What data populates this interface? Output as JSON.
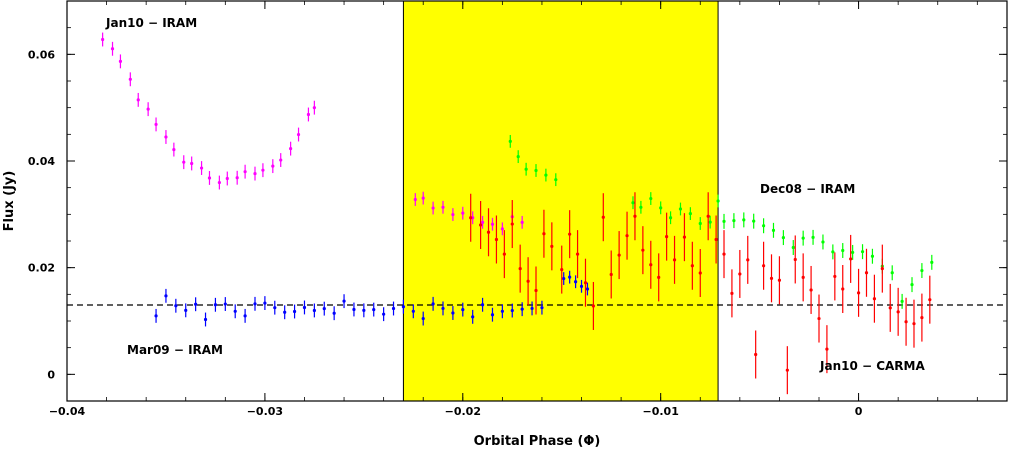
{
  "chart_data": {
    "type": "scatter",
    "xlabel": "Orbital Phase (Φ)",
    "ylabel": "Flux (Jy)",
    "xlim": [
      -0.04,
      0.0075
    ],
    "ylim": [
      -0.005,
      0.07
    ],
    "x_ticks": [
      -0.04,
      -0.03,
      -0.02,
      -0.01,
      0
    ],
    "x_tick_labels": [
      "−0.04",
      "−0.03",
      "−0.02",
      "−0.01",
      "0"
    ],
    "y_ticks": [
      0,
      0.02,
      0.04,
      0.06
    ],
    "y_tick_labels": [
      "0",
      "0.02",
      "0.04",
      "0.06"
    ],
    "grid": false,
    "shaded_region": {
      "x": [
        -0.023,
        -0.0071
      ],
      "color": "#ffff00"
    },
    "reference_line": {
      "y": 0.013,
      "style": "dashed",
      "color": "#000000"
    },
    "annotations": [
      "Jan10 − IRAM",
      "Dec08 − IRAM",
      "Mar09 − IRAM",
      "Jan10 − CARMA"
    ],
    "series": [
      {
        "name": "Jan10 − IRAM",
        "color": "#ff00ff",
        "segments": [
          {
            "x": [
              -0.0382,
              -0.0377,
              -0.0373,
              -0.0368,
              -0.0364,
              -0.0359,
              -0.0355,
              -0.035,
              -0.0346,
              -0.0341,
              -0.0337,
              -0.0332,
              -0.0328,
              -0.0323,
              -0.0319,
              -0.0314,
              -0.031,
              -0.0305,
              -0.0301,
              -0.0296,
              -0.0292,
              -0.0287,
              -0.0283,
              -0.0278,
              -0.0275
            ],
            "y": [
              0.0635,
              0.0605,
              0.0585,
              0.0555,
              0.052,
              0.049,
              0.0465,
              0.0445,
              0.0425,
              0.0405,
              0.039,
              0.0385,
              0.037,
              0.0365,
              0.036,
              0.0365,
              0.038,
              0.038,
              0.039,
              0.0385,
              0.04,
              0.0425,
              0.0455,
              0.048,
              0.05
            ],
            "yerr": 0.0013
          },
          {
            "x": [
              -0.0224,
              -0.022,
              -0.0215,
              -0.021,
              -0.0205,
              -0.02,
              -0.0195,
              -0.019,
              -0.0185,
              -0.018,
              -0.0175,
              -0.017
            ],
            "y": [
              0.0335,
              0.0325,
              0.031,
              0.0315,
              0.0305,
              0.0295,
              0.029,
              0.0285,
              0.0285,
              0.028,
              0.029,
              0.0285
            ],
            "yerr": 0.0012
          }
        ]
      },
      {
        "name": "Dec08 − IRAM",
        "color": "#00ff00",
        "segments": [
          {
            "x": [
              -0.0176,
              -0.0172,
              -0.0168,
              -0.0163,
              -0.0158,
              -0.0153
            ],
            "y": [
              0.0435,
              0.041,
              0.039,
              0.0375,
              0.037,
              0.0365
            ],
            "yerr": 0.0012
          },
          {
            "x": [
              -0.0114,
              -0.011,
              -0.0105,
              -0.01,
              -0.0095,
              -0.009,
              -0.0085,
              -0.008,
              -0.0075,
              -0.0071
            ],
            "y": [
              0.032,
              0.0315,
              0.0335,
              0.0305,
              0.029,
              0.031,
              0.0305,
              0.029,
              0.028,
              0.0325
            ],
            "yerr": 0.0012
          },
          {
            "x": [
              -0.0068,
              -0.0063,
              -0.0058,
              -0.0053,
              -0.0048,
              -0.0043,
              -0.0038,
              -0.0033,
              -0.0028,
              -0.0023,
              -0.0018,
              -0.0013,
              -0.0008,
              -0.0003,
              0.0002,
              0.0007,
              0.0012,
              0.0017,
              0.0022,
              0.0027,
              0.0032,
              0.0037
            ],
            "y": [
              0.0285,
              0.029,
              0.0295,
              0.028,
              0.0275,
              0.027,
              0.026,
              0.0245,
              0.025,
              0.0255,
              0.025,
              0.0235,
              0.0225,
              0.0225,
              0.023,
              0.0225,
              0.021,
              0.0185,
              0.0135,
              0.017,
              0.02,
              0.021
            ],
            "yerr": 0.0014
          }
        ]
      },
      {
        "name": "Mar09 − IRAM",
        "color": "#0000ff",
        "segments": [
          {
            "x": [
              -0.0355,
              -0.035,
              -0.0345,
              -0.034,
              -0.0335,
              -0.033,
              -0.0325,
              -0.032,
              -0.0315,
              -0.031,
              -0.0305,
              -0.03,
              -0.0295,
              -0.029,
              -0.0285,
              -0.028,
              -0.0275,
              -0.027,
              -0.0265,
              -0.026,
              -0.0255,
              -0.025,
              -0.0245,
              -0.024,
              -0.0235,
              -0.023,
              -0.0225,
              -0.022,
              -0.0215,
              -0.021,
              -0.0205,
              -0.02,
              -0.0195,
              -0.019,
              -0.0185,
              -0.018,
              -0.0175,
              -0.017,
              -0.0165,
              -0.016
            ],
            "y": [
              0.0115,
              0.014,
              0.0125,
              0.012,
              0.0135,
              0.011,
              0.0125,
              0.013,
              0.012,
              0.0115,
              0.0125,
              0.013,
              0.0125,
              0.012,
              0.0125,
              0.012,
              0.0118,
              0.0125,
              0.012,
              0.013,
              0.0118,
              0.012,
              0.0125,
              0.012,
              0.0118,
              0.0125,
              0.012,
              0.011,
              0.0125,
              0.012,
              0.0115,
              0.0125,
              0.0115,
              0.0125,
              0.011,
              0.012,
              0.0125,
              0.0115,
              0.012,
              0.0125
            ],
            "yerr": 0.0013
          },
          {
            "x": [
              -0.0149,
              -0.0146,
              -0.0143,
              -0.014,
              -0.0137
            ],
            "y": [
              0.0185,
              0.0175,
              0.017,
              0.0165,
              0.016
            ],
            "yerr": 0.0012
          }
        ]
      },
      {
        "name": "Jan10 − CARMA",
        "color": "#ff0000",
        "segments": [
          {
            "x": [
              -0.0196,
              -0.0191,
              -0.0187,
              -0.0183,
              -0.0179,
              -0.0175,
              -0.0171,
              -0.0167,
              -0.0163,
              -0.0159,
              -0.0155,
              -0.015,
              -0.0146,
              -0.0142,
              -0.0138,
              -0.0134,
              -0.0129,
              -0.0125,
              -0.0121,
              -0.0117,
              -0.0113,
              -0.0109,
              -0.0105,
              -0.0101,
              -0.0097,
              -0.0093,
              -0.0088,
              -0.0084,
              -0.008,
              -0.0076,
              -0.0072,
              -0.0068,
              -0.0064,
              -0.006,
              -0.0056,
              -0.0052,
              -0.0048,
              -0.0044,
              -0.004,
              -0.0036,
              -0.0032,
              -0.0028,
              -0.0024,
              -0.002,
              -0.0016,
              -0.0012,
              -0.0008,
              -0.0004,
              0.0,
              0.0004,
              0.0008,
              0.0012,
              0.0016,
              0.002,
              0.0024,
              0.0028,
              0.0032,
              0.0036
            ],
            "y": [
              0.029,
              0.028,
              0.027,
              0.026,
              0.022,
              0.028,
              0.02,
              0.018,
              0.015,
              0.026,
              0.024,
              0.02,
              0.027,
              0.022,
              0.017,
              0.013,
              0.03,
              0.018,
              0.022,
              0.026,
              0.03,
              0.024,
              0.02,
              0.018,
              0.026,
              0.022,
              0.025,
              0.02,
              0.019,
              0.03,
              0.026,
              0.022,
              0.015,
              0.019,
              0.022,
              0.003,
              0.02,
              0.018,
              0.018,
              0.0015,
              0.021,
              0.018,
              0.016,
              0.011,
              0.004,
              0.018,
              0.016,
              0.022,
              0.016,
              0.0185,
              0.014,
              0.02,
              0.013,
              0.011,
              0.0095,
              0.0095,
              0.011,
              0.014
            ],
            "yerr": 0.0045
          }
        ]
      }
    ]
  }
}
